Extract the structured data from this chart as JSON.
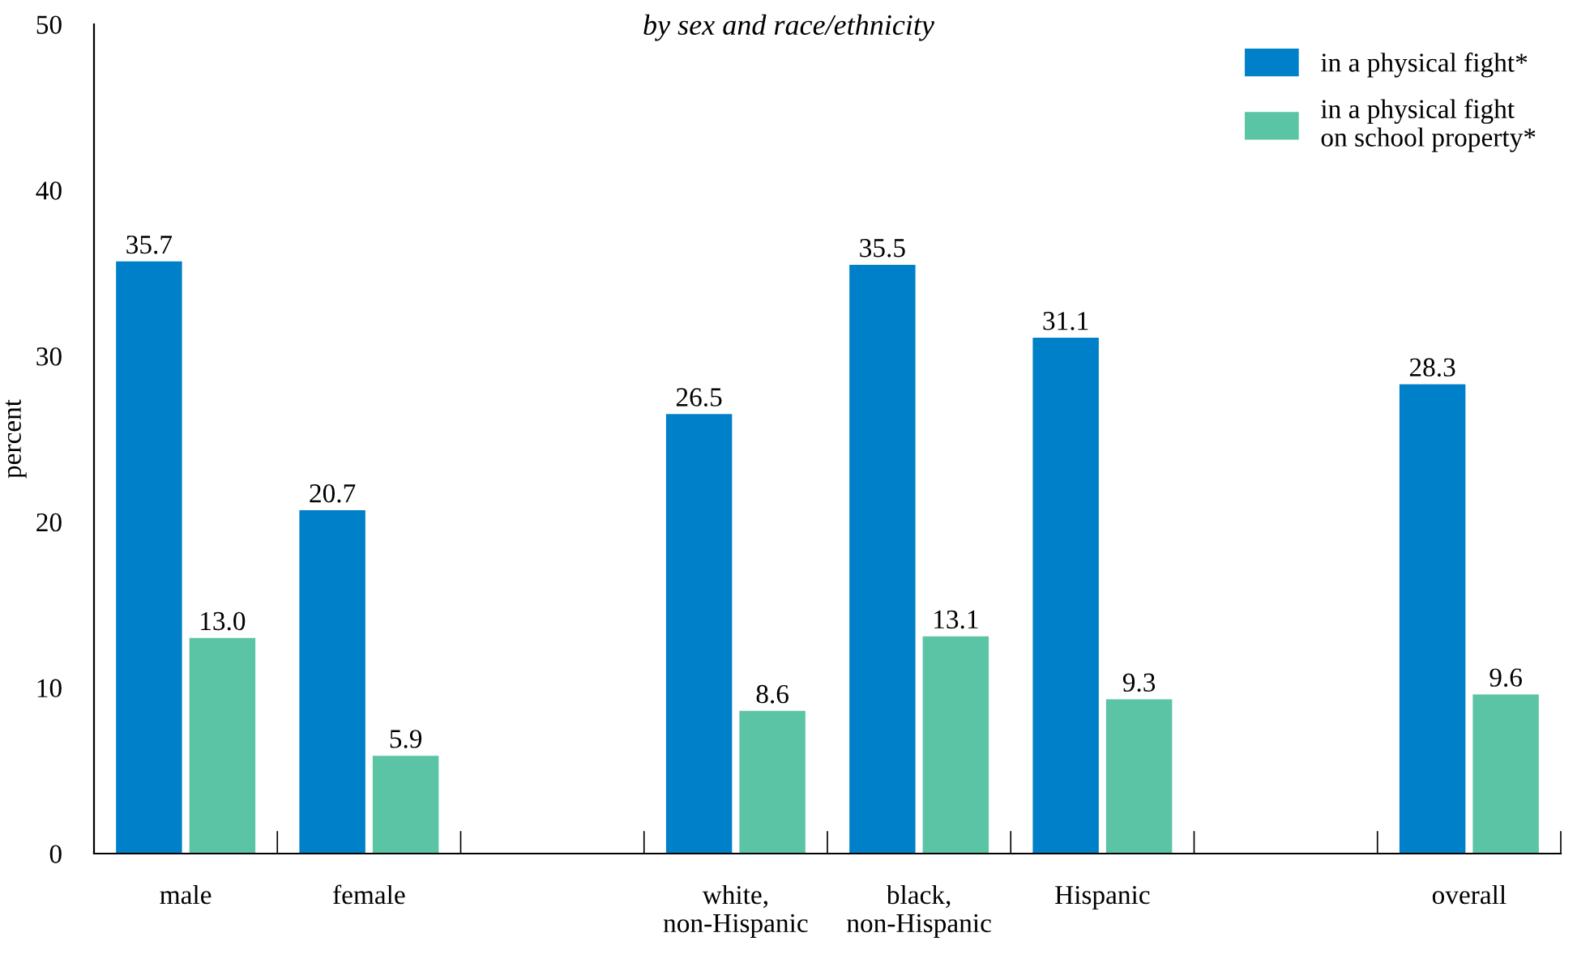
{
  "chart_data": {
    "type": "bar",
    "subtitle": "by sex and race/ethnicity",
    "ylabel": "percent",
    "categories": [
      "male",
      "female",
      null,
      "white,\nnon-Hispanic",
      "black,\nnon-Hispanic",
      "Hispanic",
      null,
      "overall"
    ],
    "series": [
      {
        "name": "in a physical fight*",
        "color": "#0080c8",
        "values": [
          35.7,
          20.7,
          null,
          26.5,
          35.5,
          31.1,
          null,
          28.3
        ],
        "value_labels": [
          "35.7",
          "20.7",
          null,
          "26.5",
          "35.5",
          "31.1",
          null,
          "28.3"
        ]
      },
      {
        "name": "in a physical fight\non school property*",
        "color": "#5bc4a5",
        "values": [
          13.0,
          5.9,
          null,
          8.6,
          13.1,
          9.3,
          null,
          9.6
        ],
        "value_labels": [
          "13.0",
          "5.9",
          null,
          "8.6",
          "13.1",
          "9.3",
          null,
          "9.6"
        ]
      }
    ],
    "ylim": [
      0,
      50
    ],
    "yticks": [
      0,
      10,
      20,
      30,
      40,
      50
    ],
    "grid": false,
    "legend": "top right"
  }
}
